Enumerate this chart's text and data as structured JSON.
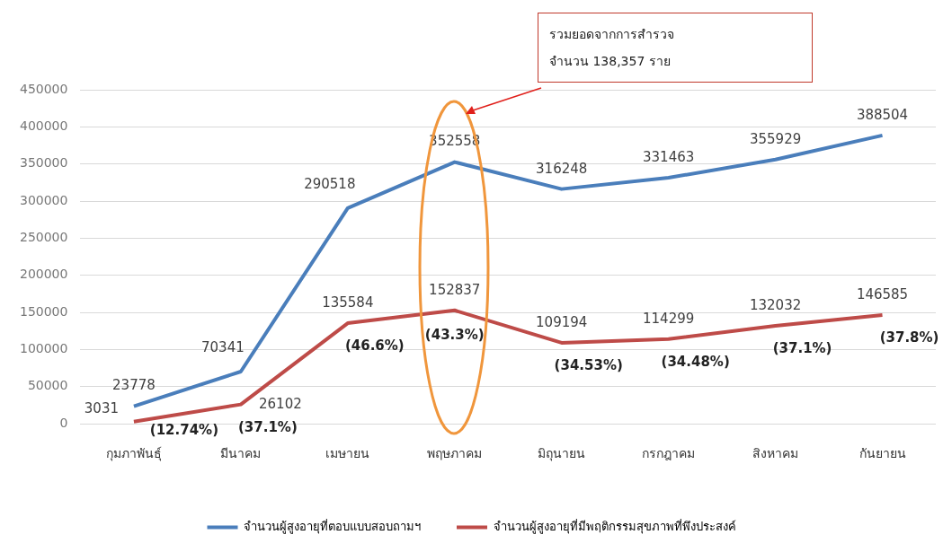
{
  "chart_data": {
    "type": "line",
    "categories": [
      "กุมภาพันธุ์",
      "มีนาคม",
      "เมษายน",
      "พฤษภาคม",
      "มิถุนายน",
      "กรกฎาคม",
      "สิงหาคม",
      "กันยายน"
    ],
    "series": [
      {
        "name": "จำนวนผู้สูงอายุที่ตอบแบบสอบถามฯ",
        "color": "#4a7ebb",
        "values": [
          23778,
          70341,
          290518,
          352558,
          316248,
          331463,
          355929,
          388504
        ]
      },
      {
        "name": "จำนวนผู้สูงอายุที่มีพฤติกรรมสุขภาพที่พึงประสงค์",
        "color": "#be4b48",
        "values": [
          3031,
          26102,
          135584,
          152837,
          109194,
          114299,
          132032,
          146585
        ]
      }
    ],
    "ylim": [
      0,
      450000
    ],
    "yticks": [
      0,
      50000,
      100000,
      150000,
      200000,
      250000,
      300000,
      350000,
      400000,
      450000
    ],
    "grid": "y",
    "legend": "bottom",
    "marker": "none",
    "line_style": "solid",
    "data_labels": true,
    "annotations": [
      "รวมยอดจากการสำรวจ",
      "จำนวน 138,357 ราย",
      {
        "text": "(12.74%)",
        "x": "กุมภาพันธุ์",
        "y": 3031
      },
      {
        "text": "(37.1%)",
        "x": "มีนาคม",
        "y": 26102
      },
      {
        "text": "(46.6%)",
        "x": "เมษายน",
        "y": 135584
      },
      {
        "text": "(43.3%)",
        "x": "พฤษภาคม",
        "y": 152837
      },
      {
        "text": "(34.53%)",
        "x": "มิถุนายน",
        "y": 109194
      },
      {
        "text": "(34.48%)",
        "x": "กรกฎาคม",
        "y": 114299
      },
      {
        "text": "(37.1%)",
        "x": "สิงหาคม",
        "y": 132032
      },
      {
        "text": "(37.8%)",
        "x": "กันยายน",
        "y": 146585
      }
    ]
  }
}
